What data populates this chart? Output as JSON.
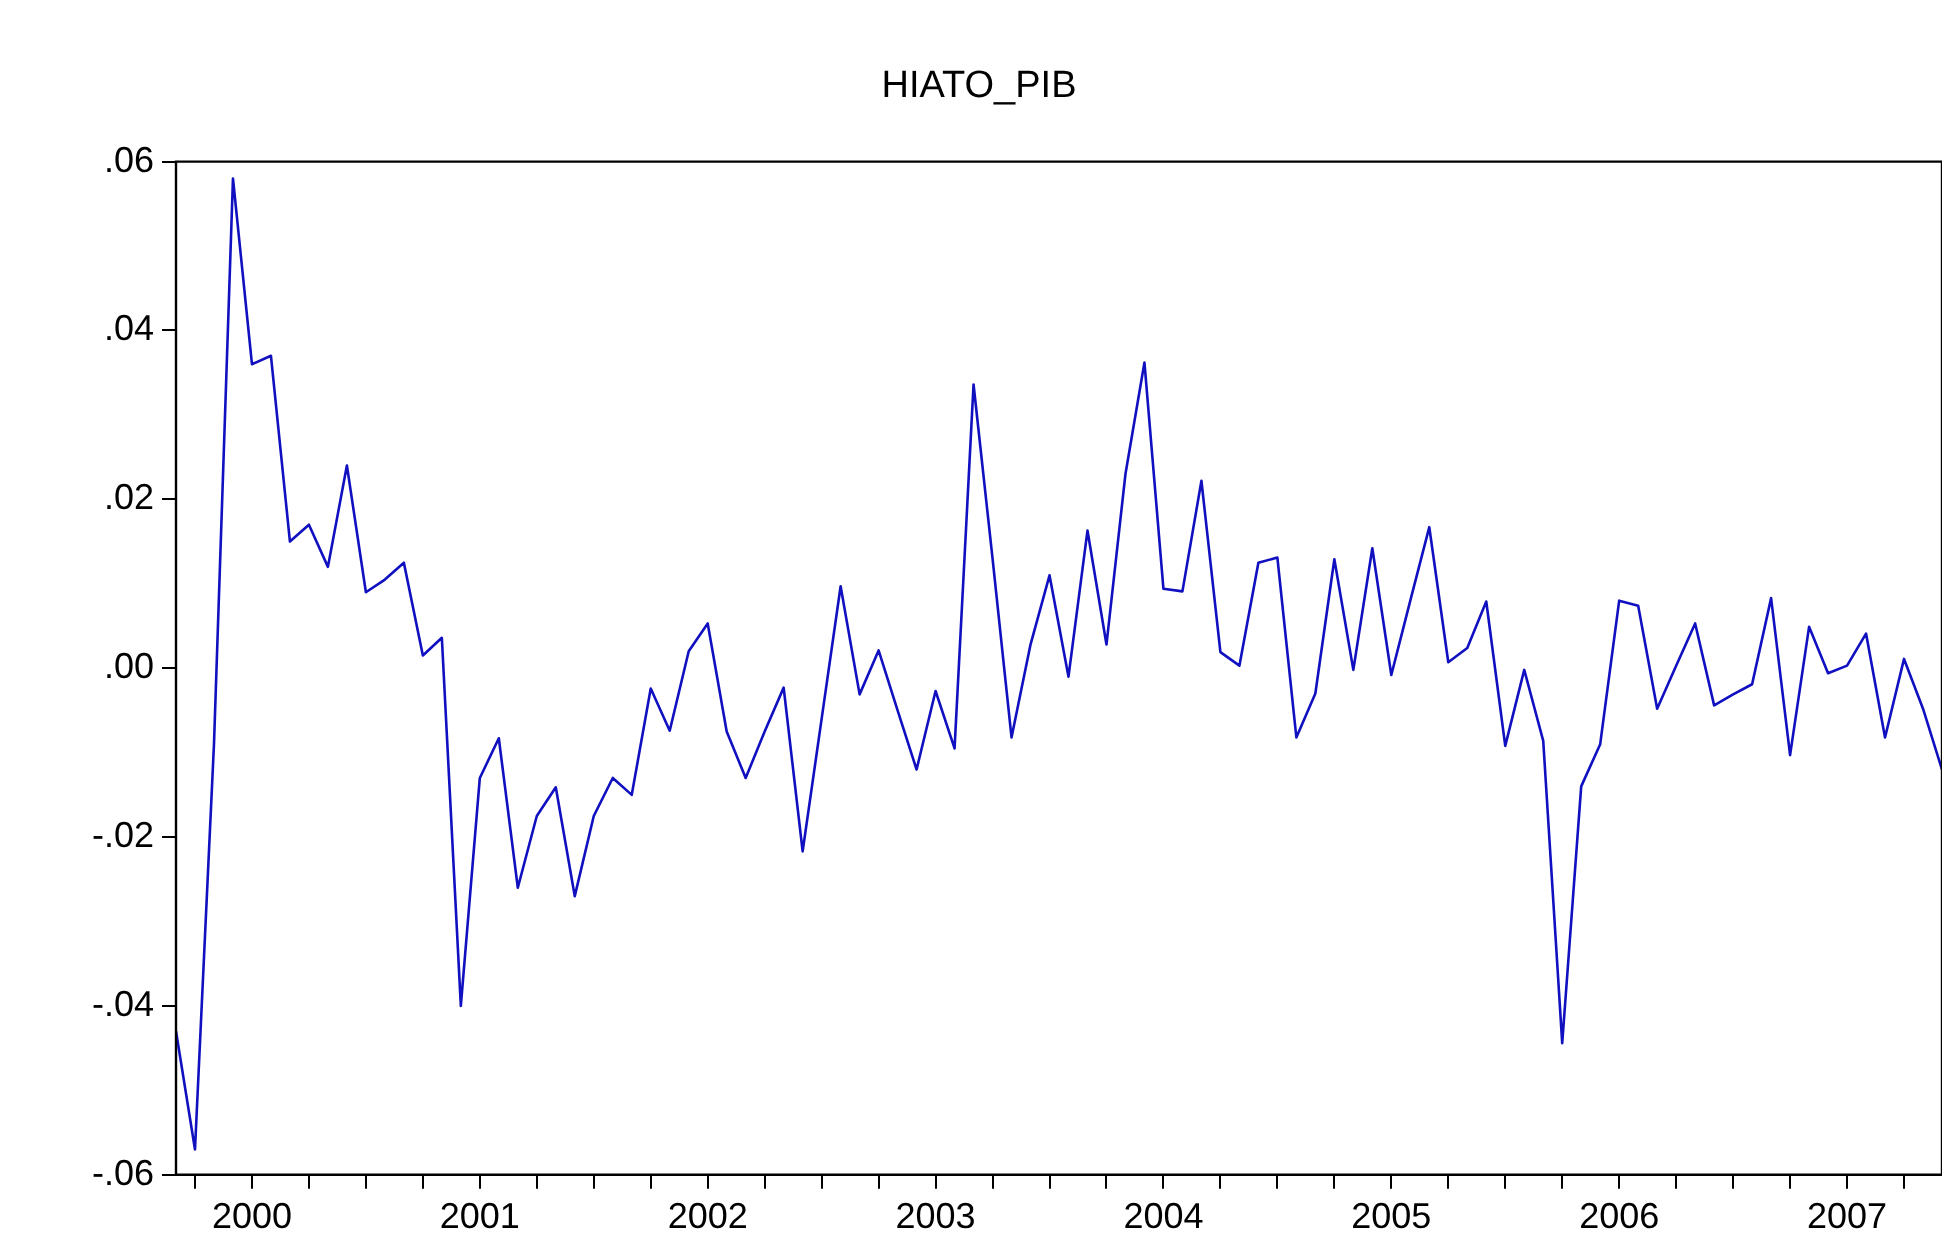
{
  "chart_data": {
    "type": "line",
    "title": "HIATO_PIB",
    "x": [
      "2000-03",
      "2000-04",
      "2000-05",
      "2000-06",
      "2000-07",
      "2000-08",
      "2000-09",
      "2000-10",
      "2000-11",
      "2000-12",
      "2001-01",
      "2001-02",
      "2001-03",
      "2001-04",
      "2001-05",
      "2001-06",
      "2001-07",
      "2001-08",
      "2001-09",
      "2001-10",
      "2001-11",
      "2001-12",
      "2002-01",
      "2002-02",
      "2002-03",
      "2002-04",
      "2002-05",
      "2002-06",
      "2002-07",
      "2002-08",
      "2002-09",
      "2002-10",
      "2002-11",
      "2002-12",
      "2003-01",
      "2003-02",
      "2003-03",
      "2003-04",
      "2003-05",
      "2003-06",
      "2003-07",
      "2003-08",
      "2003-09",
      "2003-10",
      "2003-11",
      "2003-12",
      "2004-01",
      "2004-02",
      "2004-03",
      "2004-04",
      "2004-05",
      "2004-06",
      "2004-07",
      "2004-08",
      "2004-09",
      "2004-10",
      "2004-11",
      "2004-12",
      "2005-01",
      "2005-02",
      "2005-03",
      "2005-04",
      "2005-05",
      "2005-06",
      "2005-07",
      "2005-08",
      "2005-09",
      "2005-10",
      "2005-11",
      "2005-12",
      "2006-01",
      "2006-02",
      "2006-03",
      "2006-04",
      "2006-05",
      "2006-06",
      "2006-07",
      "2006-08",
      "2006-09",
      "2006-10",
      "2006-11",
      "2006-12",
      "2007-01",
      "2007-02",
      "2007-03",
      "2007-04",
      "2007-05",
      "2007-06",
      "2007-07",
      "2007-08",
      "2007-09",
      "2007-10",
      "2007-11",
      "2007-12"
    ],
    "series": [
      {
        "color": "#1010c0",
        "values": [
          -0.043,
          -0.057,
          -0.009,
          0.058,
          0.036,
          0.037,
          0.015,
          0.017,
          0.012,
          0.024,
          0.009,
          0.0105,
          0.0125,
          0.0015,
          0.0036,
          -0.04,
          -0.013,
          -0.0083,
          -0.026,
          -0.0175,
          -0.0141,
          -0.027,
          -0.0175,
          -0.013,
          -0.015,
          -0.0024,
          -0.0074,
          0.002,
          0.0053,
          -0.0075,
          -0.013,
          -0.0075,
          -0.0023,
          -0.0217,
          -0.006,
          0.0097,
          -0.0031,
          0.0021,
          -0.005,
          -0.012,
          -0.0027,
          -0.0095,
          0.0336,
          0.013,
          -0.0082,
          0.0028,
          0.011,
          -0.001,
          0.0163,
          0.0028,
          0.023,
          0.0362,
          0.0094,
          0.0091,
          0.0222,
          0.0019,
          0.0003,
          0.0125,
          0.0131,
          -0.0082,
          -0.003,
          0.0129,
          -0.0002,
          0.0142,
          -0.0008,
          0.008,
          0.0167,
          0.0007,
          0.0024,
          0.0079,
          -0.0092,
          -0.0002,
          -0.0086,
          -0.0444,
          -0.014,
          -0.009,
          0.008,
          0.0074,
          -0.0048,
          0.0003,
          0.0053,
          -0.0044,
          -0.0031,
          -0.0019,
          0.0083,
          -0.0103,
          0.0049,
          -0.0006,
          0.0003,
          0.0041,
          -0.0082,
          0.0011,
          -0.0048,
          -0.012
        ]
      }
    ],
    "xlim": [
      "2000-03",
      "2007-12"
    ],
    "xticks": [
      {
        "value": "2000-04",
        "label": null
      },
      {
        "value": "2000-07",
        "label": "2000"
      },
      {
        "value": "2000-10",
        "label": null
      },
      {
        "value": "2001-01",
        "label": null
      },
      {
        "value": "2001-04",
        "label": null
      },
      {
        "value": "2001-07",
        "label": "2001"
      },
      {
        "value": "2001-10",
        "label": null
      },
      {
        "value": "2002-01",
        "label": null
      },
      {
        "value": "2002-04",
        "label": null
      },
      {
        "value": "2002-07",
        "label": "2002"
      },
      {
        "value": "2002-10",
        "label": null
      },
      {
        "value": "2003-01",
        "label": null
      },
      {
        "value": "2003-04",
        "label": null
      },
      {
        "value": "2003-07",
        "label": "2003"
      },
      {
        "value": "2003-10",
        "label": null
      },
      {
        "value": "2004-01",
        "label": null
      },
      {
        "value": "2004-04",
        "label": null
      },
      {
        "value": "2004-07",
        "label": "2004"
      },
      {
        "value": "2004-10",
        "label": null
      },
      {
        "value": "2005-01",
        "label": null
      },
      {
        "value": "2005-04",
        "label": null
      },
      {
        "value": "2005-07",
        "label": "2005"
      },
      {
        "value": "2005-10",
        "label": null
      },
      {
        "value": "2006-01",
        "label": null
      },
      {
        "value": "2006-04",
        "label": null
      },
      {
        "value": "2006-07",
        "label": "2006"
      },
      {
        "value": "2006-10",
        "label": null
      },
      {
        "value": "2007-01",
        "label": null
      },
      {
        "value": "2007-04",
        "label": null
      },
      {
        "value": "2007-07",
        "label": "2007"
      },
      {
        "value": "2007-10",
        "label": null
      }
    ],
    "ylim": [
      -0.06,
      0.06
    ],
    "yticks": [
      {
        "value": -0.06,
        "label": "-.06"
      },
      {
        "value": -0.04,
        "label": "-.04"
      },
      {
        "value": -0.02,
        "label": "-.02"
      },
      {
        "value": 0,
        "label": ".00"
      },
      {
        "value": 0.02,
        "label": ".02"
      },
      {
        "value": 0.04,
        "label": ".04"
      },
      {
        "value": 0.06,
        "label": ".06"
      }
    ],
    "grid": false,
    "legend": false,
    "marker": "none",
    "line_style": "solid"
  }
}
